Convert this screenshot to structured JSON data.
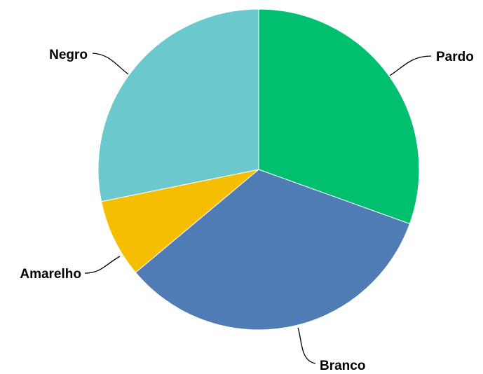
{
  "chart_data": {
    "type": "pie",
    "title": "",
    "legend": "none",
    "slices": [
      {
        "label": "Pardo",
        "value": 30.5,
        "color": "#00BF6F"
      },
      {
        "label": "Branco",
        "value": 33.4,
        "color": "#507CB6"
      },
      {
        "label": "Amarelho",
        "value": 7.9,
        "color": "#F6BE00"
      },
      {
        "label": "Negro",
        "value": 28.2,
        "color": "#6BC8CD"
      }
    ]
  }
}
